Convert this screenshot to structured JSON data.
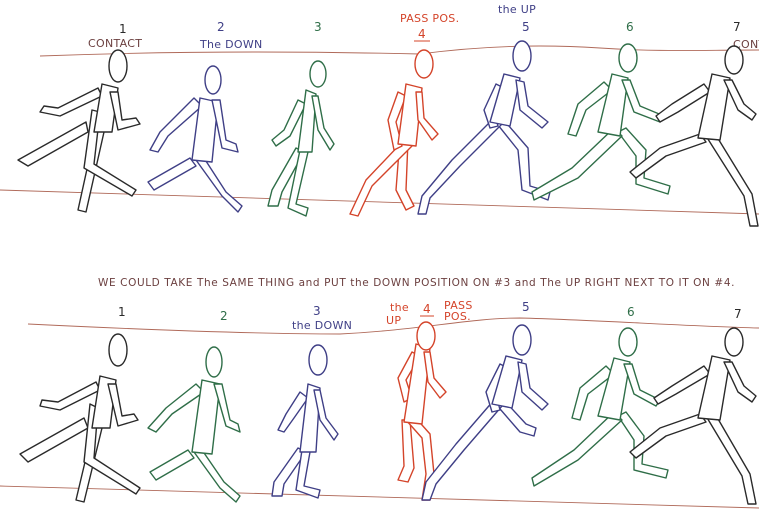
{
  "sheet": {
    "note": "WE COULD TAKE The SAME THING and PUT the DOWN POSITION ON #3 and The UP RIGHT NEXT TO IT ON #4.",
    "top_labels": {
      "contact": "CONTACT",
      "down": "The DOWN",
      "pass_pos": "PASS POS.",
      "up": "the UP",
      "contact_cut": "CONTA"
    },
    "bottom_labels": {
      "down": "the DOWN",
      "up_a": "the",
      "up_b": "UP",
      "pass_a": "PASS",
      "pass_b": "POS."
    }
  },
  "colors": {
    "black": "#2a2a2a",
    "blue": "#3f3f86",
    "green": "#2f6e48",
    "red": "#d4442a",
    "guide": "#b06a5a"
  },
  "strips": [
    {
      "name": "top",
      "frames": [
        {
          "num": "1",
          "color": "black"
        },
        {
          "num": "2",
          "color": "blue"
        },
        {
          "num": "3",
          "color": "green"
        },
        {
          "num": "4",
          "color": "red"
        },
        {
          "num": "5",
          "color": "blue"
        },
        {
          "num": "6",
          "color": "green"
        },
        {
          "num": "7",
          "color": "black"
        }
      ]
    },
    {
      "name": "bottom",
      "frames": [
        {
          "num": "1",
          "color": "black"
        },
        {
          "num": "2",
          "color": "green"
        },
        {
          "num": "3",
          "color": "blue"
        },
        {
          "num": "4",
          "color": "red"
        },
        {
          "num": "5",
          "color": "blue"
        },
        {
          "num": "6",
          "color": "green"
        },
        {
          "num": "7",
          "color": "black"
        }
      ]
    }
  ]
}
